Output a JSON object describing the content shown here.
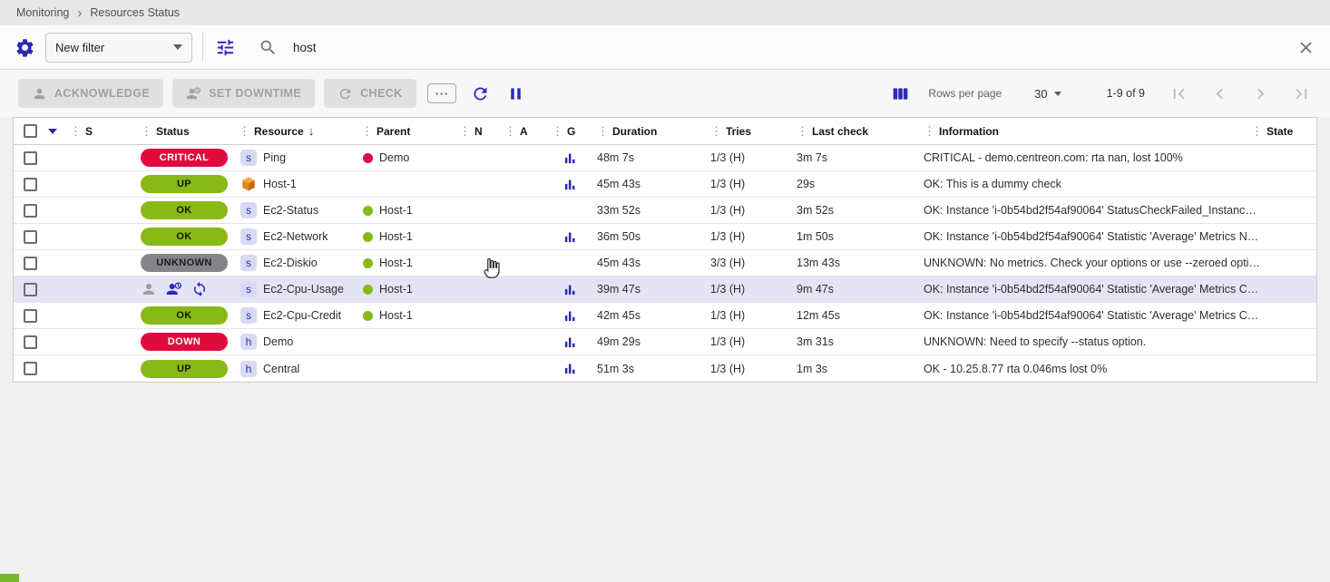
{
  "colors": {
    "accent": "#2a2ab8",
    "ok_green": "#88b917",
    "critical_red": "#e00b3d",
    "unknown_gray": "#84848a",
    "hover_row": "#e4e4f6",
    "host_icon_orange": "#e5881e"
  },
  "breadcrumb": {
    "items": [
      {
        "label": "Monitoring"
      },
      {
        "label": "Resources Status"
      }
    ]
  },
  "filter": {
    "preset_value": "New filter",
    "search_value": "host"
  },
  "toolbar": {
    "acknowledge_label": "ACKNOWLEDGE",
    "set_downtime_label": "SET DOWNTIME",
    "check_label": "CHECK",
    "more_label": "⋯"
  },
  "pagination": {
    "rows_per_page_label": "Rows per page",
    "rows_per_page_value": "30",
    "range_label": "1-9 of 9"
  },
  "icons": {
    "grip": "⋮",
    "sort_desc": "↓",
    "breadcrumb_chevron": "›"
  },
  "table": {
    "headers": [
      {
        "key": "s",
        "label": "S"
      },
      {
        "key": "status",
        "label": "Status"
      },
      {
        "key": "resource",
        "label": "Resource",
        "sorted": "desc"
      },
      {
        "key": "parent",
        "label": "Parent"
      },
      {
        "key": "n",
        "label": "N"
      },
      {
        "key": "a",
        "label": "A"
      },
      {
        "key": "g",
        "label": "G"
      },
      {
        "key": "duration",
        "label": "Duration"
      },
      {
        "key": "tries",
        "label": "Tries"
      },
      {
        "key": "last_check",
        "label": "Last check"
      },
      {
        "key": "information",
        "label": "Information"
      },
      {
        "key": "state",
        "label": "State"
      }
    ],
    "rows": [
      {
        "status": "CRITICAL",
        "severity": "critical",
        "type": "service",
        "resource": "Ping",
        "parent": "Demo",
        "parent_severity": "critical",
        "graph": true,
        "hover_actions": false,
        "duration": "48m 7s",
        "tries": "1/3 (H)",
        "last_check": "3m 7s",
        "information": "CRITICAL - demo.centreon.com: rta nan, lost 100%"
      },
      {
        "status": "UP",
        "severity": "ok",
        "type": "host-cube",
        "resource": "Host-1",
        "parent": null,
        "parent_severity": null,
        "graph": true,
        "hover_actions": false,
        "duration": "45m 43s",
        "tries": "1/3 (H)",
        "last_check": "29s",
        "information": "OK: This is a dummy check"
      },
      {
        "status": "OK",
        "severity": "ok",
        "type": "service",
        "resource": "Ec2-Status",
        "parent": "Host-1",
        "parent_severity": "ok",
        "graph": false,
        "hover_actions": false,
        "duration": "33m 52s",
        "tries": "1/3 (H)",
        "last_check": "3m 52s",
        "information": "OK: Instance 'i-0b54bd2f54af90064' StatusCheckFailed_Instanc…"
      },
      {
        "status": "OK",
        "severity": "ok",
        "type": "service",
        "resource": "Ec2-Network",
        "parent": "Host-1",
        "parent_severity": "ok",
        "graph": true,
        "hover_actions": false,
        "duration": "36m 50s",
        "tries": "1/3 (H)",
        "last_check": "1m 50s",
        "information": "OK: Instance 'i-0b54bd2f54af90064' Statistic 'Average' Metrics N…"
      },
      {
        "status": "UNKNOWN",
        "severity": "unknown",
        "type": "service",
        "resource": "Ec2-Diskio",
        "parent": "Host-1",
        "parent_severity": "ok",
        "graph": false,
        "hover_actions": false,
        "duration": "45m 43s",
        "tries": "3/3 (H)",
        "last_check": "13m 43s",
        "information": "UNKNOWN: No metrics. Check your options or use --zeroed opti…"
      },
      {
        "status": null,
        "severity": null,
        "type": "service",
        "resource": "Ec2-Cpu-Usage",
        "parent": "Host-1",
        "parent_severity": "ok",
        "graph": true,
        "hover_actions": true,
        "duration": "39m 47s",
        "tries": "1/3 (H)",
        "last_check": "9m 47s",
        "information": "OK: Instance 'i-0b54bd2f54af90064' Statistic 'Average' Metrics C…"
      },
      {
        "status": "OK",
        "severity": "ok",
        "type": "service",
        "resource": "Ec2-Cpu-Credit",
        "parent": "Host-1",
        "parent_severity": "ok",
        "graph": true,
        "hover_actions": false,
        "duration": "42m 45s",
        "tries": "1/3 (H)",
        "last_check": "12m 45s",
        "information": "OK: Instance 'i-0b54bd2f54af90064' Statistic 'Average' Metrics C…"
      },
      {
        "status": "DOWN",
        "severity": "critical",
        "type": "host",
        "resource": "Demo",
        "parent": null,
        "parent_severity": null,
        "graph": true,
        "hover_actions": false,
        "duration": "49m 29s",
        "tries": "1/3 (H)",
        "last_check": "3m 31s",
        "information": "UNKNOWN: Need to specify --status option."
      },
      {
        "status": "UP",
        "severity": "ok",
        "type": "host",
        "resource": "Central",
        "parent": null,
        "parent_severity": null,
        "graph": true,
        "hover_actions": false,
        "duration": "51m 3s",
        "tries": "1/3 (H)",
        "last_check": "1m 3s",
        "information": "OK - 10.25.8.77 rta 0.046ms lost 0%"
      }
    ]
  }
}
